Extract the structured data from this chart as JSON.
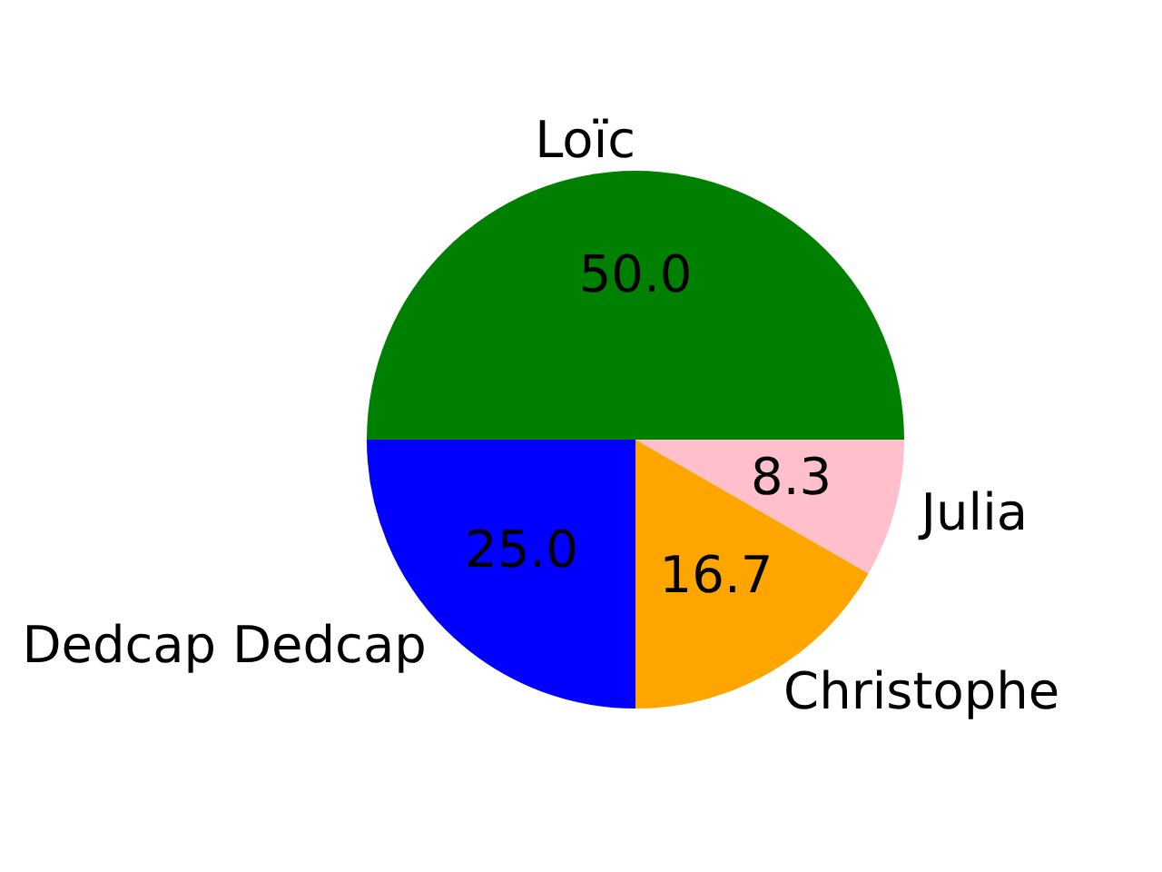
{
  "chart_data": {
    "type": "pie",
    "categories": [
      "Loïc",
      "Dedcap Dedcap",
      "Christophe",
      "Julia"
    ],
    "values": [
      50,
      25,
      16.7,
      8.3
    ],
    "colors": [
      "#008000",
      "#0000ff",
      "#ffa500",
      "#ffc0cb"
    ],
    "value_labels": [
      "50.0",
      "25.0",
      "16.7",
      "8.3"
    ]
  }
}
